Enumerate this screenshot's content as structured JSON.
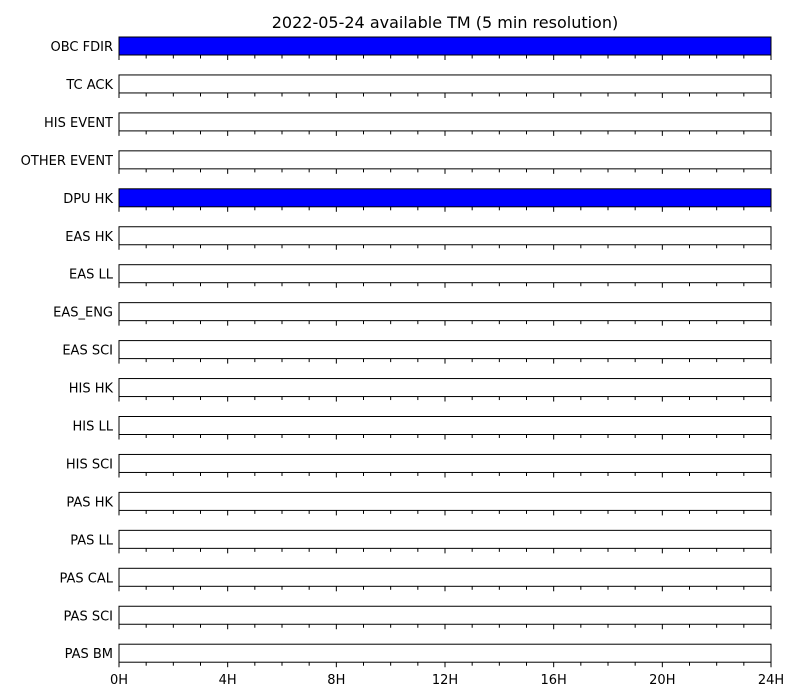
{
  "chart_data": {
    "type": "bar",
    "title": "2022-05-24 available TM (5 min resolution)",
    "xlabel": "",
    "ylabel": "",
    "xlim": [
      0,
      24
    ],
    "x_tick_values": [
      0,
      4,
      8,
      12,
      16,
      20,
      24
    ],
    "x_tick_labels": [
      "0H",
      "4H",
      "8H",
      "12H",
      "16H",
      "20H",
      "24H"
    ],
    "x_minor_step_hours": 1,
    "fill_color": "#0000ff",
    "series": [
      {
        "name": "OBC FDIR",
        "available_intervals_hours": [
          [
            0,
            24
          ]
        ]
      },
      {
        "name": "TC ACK",
        "available_intervals_hours": []
      },
      {
        "name": "HIS EVENT",
        "available_intervals_hours": []
      },
      {
        "name": "OTHER EVENT",
        "available_intervals_hours": []
      },
      {
        "name": "DPU HK",
        "available_intervals_hours": [
          [
            0,
            24
          ]
        ]
      },
      {
        "name": "EAS HK",
        "available_intervals_hours": []
      },
      {
        "name": "EAS LL",
        "available_intervals_hours": []
      },
      {
        "name": "EAS_ENG",
        "available_intervals_hours": []
      },
      {
        "name": "EAS SCI",
        "available_intervals_hours": []
      },
      {
        "name": "HIS HK",
        "available_intervals_hours": []
      },
      {
        "name": "HIS LL",
        "available_intervals_hours": []
      },
      {
        "name": "HIS SCI",
        "available_intervals_hours": []
      },
      {
        "name": "PAS HK",
        "available_intervals_hours": []
      },
      {
        "name": "PAS LL",
        "available_intervals_hours": []
      },
      {
        "name": "PAS CAL",
        "available_intervals_hours": []
      },
      {
        "name": "PAS SCI",
        "available_intervals_hours": []
      },
      {
        "name": "PAS BM",
        "available_intervals_hours": []
      }
    ]
  }
}
